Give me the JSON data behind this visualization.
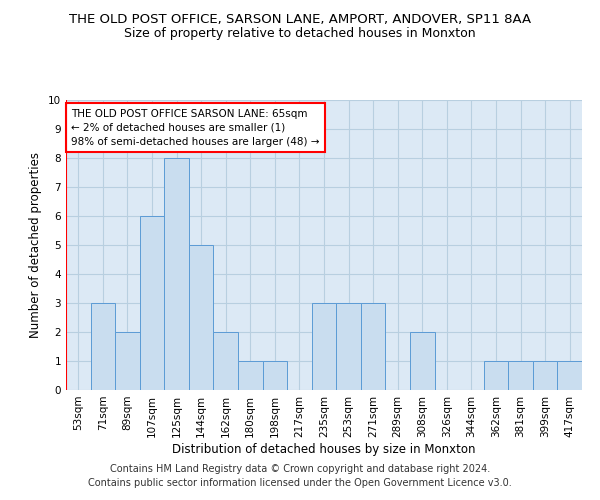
{
  "title": "THE OLD POST OFFICE, SARSON LANE, AMPORT, ANDOVER, SP11 8AA",
  "subtitle": "Size of property relative to detached houses in Monxton",
  "xlabel": "Distribution of detached houses by size in Monxton",
  "ylabel": "Number of detached properties",
  "categories": [
    "53sqm",
    "71sqm",
    "89sqm",
    "107sqm",
    "125sqm",
    "144sqm",
    "162sqm",
    "180sqm",
    "198sqm",
    "217sqm",
    "235sqm",
    "253sqm",
    "271sqm",
    "289sqm",
    "308sqm",
    "326sqm",
    "344sqm",
    "362sqm",
    "381sqm",
    "399sqm",
    "417sqm"
  ],
  "values": [
    0,
    3,
    2,
    6,
    8,
    5,
    2,
    1,
    1,
    0,
    3,
    3,
    3,
    0,
    2,
    0,
    0,
    1,
    1,
    1,
    1
  ],
  "bar_color": "#c9ddef",
  "bar_edge_color": "#5b9bd5",
  "grid_color": "#b8cfe0",
  "background_color": "#ffffff",
  "plot_bg_color": "#dce9f5",
  "ylim": [
    0,
    10
  ],
  "yticks": [
    0,
    1,
    2,
    3,
    4,
    5,
    6,
    7,
    8,
    9,
    10
  ],
  "annotation_text": "THE OLD POST OFFICE SARSON LANE: 65sqm\n← 2% of detached houses are smaller (1)\n98% of semi-detached houses are larger (48) →",
  "footer_text": "Contains HM Land Registry data © Crown copyright and database right 2024.\nContains public sector information licensed under the Open Government Licence v3.0.",
  "title_fontsize": 9.5,
  "subtitle_fontsize": 9,
  "axis_label_fontsize": 8.5,
  "tick_fontsize": 7.5,
  "annotation_fontsize": 7.5,
  "footer_fontsize": 7
}
